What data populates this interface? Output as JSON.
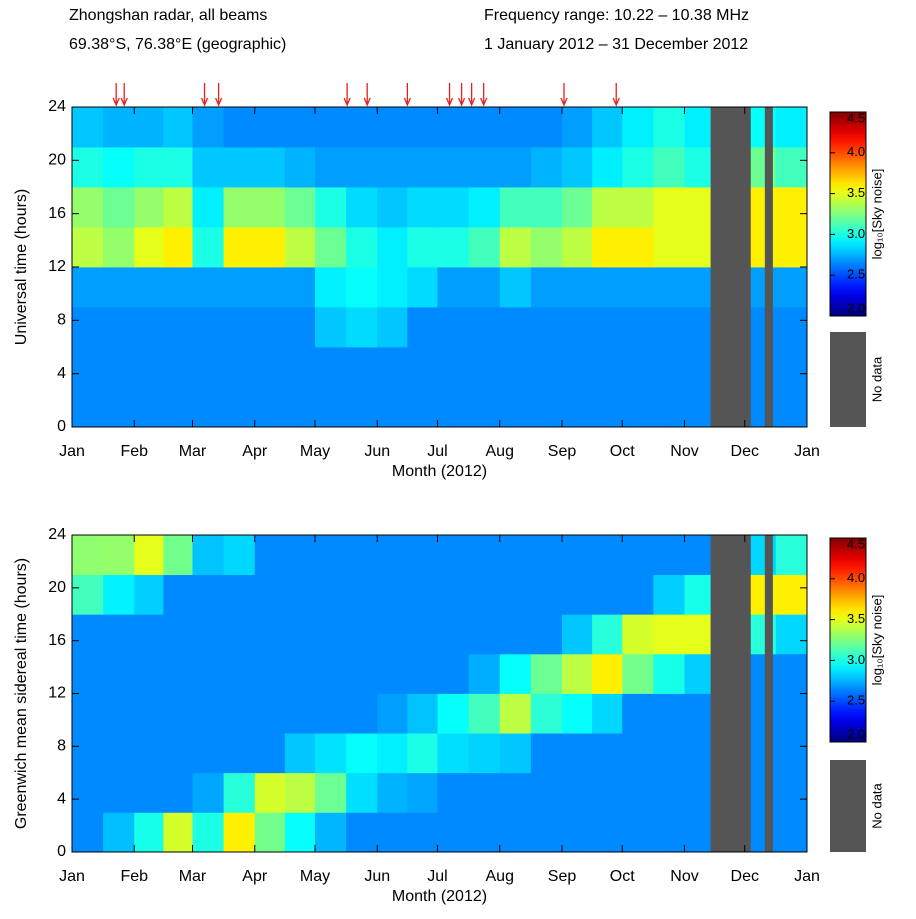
{
  "header": {
    "left": [
      "Zhongshan radar, all beams",
      "69.38°S, 76.38°E (geographic)"
    ],
    "right": [
      "Frequency range: 10.22 – 10.38 MHz",
      "1 January 2012 – 31 December 2012"
    ]
  },
  "chart_data": [
    {
      "type": "heatmap",
      "ylabel": "Universal time (hours)",
      "xlabel": "Month (2012)",
      "xlim": [
        0,
        366
      ],
      "xticks": [
        {
          "value": 0,
          "label": "Jan"
        },
        {
          "value": 31,
          "label": "Feb"
        },
        {
          "value": 60,
          "label": "Mar"
        },
        {
          "value": 91,
          "label": "Apr"
        },
        {
          "value": 121,
          "label": "May"
        },
        {
          "value": 152,
          "label": "Jun"
        },
        {
          "value": 182,
          "label": "Jul"
        },
        {
          "value": 213,
          "label": "Aug"
        },
        {
          "value": 244,
          "label": "Sep"
        },
        {
          "value": 274,
          "label": "Oct"
        },
        {
          "value": 305,
          "label": "Nov"
        },
        {
          "value": 335,
          "label": "Dec"
        },
        {
          "value": 366,
          "label": "Jan"
        }
      ],
      "ylim": [
        0,
        24
      ],
      "yticks": [
        0,
        4,
        8,
        12,
        16,
        20,
        24
      ],
      "xbins": [
        0,
        15.5,
        31,
        45.5,
        60,
        75.5,
        91,
        106,
        121,
        136.5,
        152,
        167,
        182,
        197.5,
        213,
        228.5,
        244,
        259,
        274,
        289.5,
        305,
        320,
        335,
        350.5,
        366
      ],
      "ybins": [
        0,
        3,
        6,
        9,
        12,
        15,
        18,
        21,
        24
      ],
      "z": [
        [
          2.65,
          2.65,
          2.65,
          2.65,
          2.65,
          2.65,
          2.65,
          2.65,
          2.65,
          2.65,
          2.65,
          2.65,
          2.65,
          2.65,
          2.65,
          2.65,
          2.65,
          2.65,
          2.65,
          2.65,
          2.65,
          2.65,
          2.65,
          2.65
        ],
        [
          2.65,
          2.65,
          2.65,
          2.65,
          2.65,
          2.65,
          2.65,
          2.65,
          2.65,
          2.65,
          2.65,
          2.65,
          2.65,
          2.65,
          2.65,
          2.65,
          2.65,
          2.65,
          2.65,
          2.65,
          2.65,
          2.65,
          2.65,
          2.65
        ],
        [
          2.65,
          2.65,
          2.65,
          2.65,
          2.65,
          2.65,
          2.65,
          2.65,
          2.8,
          2.85,
          2.8,
          2.65,
          2.65,
          2.65,
          2.65,
          2.65,
          2.65,
          2.65,
          2.65,
          2.65,
          2.65,
          2.65,
          2.65,
          2.65
        ],
        [
          2.7,
          2.7,
          2.7,
          2.7,
          2.7,
          2.7,
          2.7,
          2.7,
          2.9,
          2.95,
          2.9,
          2.85,
          2.7,
          2.7,
          2.8,
          2.7,
          2.7,
          2.7,
          2.7,
          2.7,
          2.7,
          2.7,
          2.7,
          2.7
        ],
        [
          3.4,
          3.3,
          3.5,
          3.6,
          3.0,
          3.6,
          3.6,
          3.4,
          3.2,
          3.0,
          2.9,
          3.0,
          3.0,
          3.1,
          3.4,
          3.3,
          3.4,
          3.6,
          3.6,
          3.5,
          3.5,
          3.4,
          3.6,
          3.6
        ],
        [
          3.3,
          3.2,
          3.3,
          3.4,
          2.9,
          3.3,
          3.3,
          3.2,
          3.0,
          2.85,
          2.8,
          2.85,
          2.85,
          2.9,
          3.1,
          3.1,
          3.2,
          3.4,
          3.4,
          3.5,
          3.5,
          3.4,
          3.6,
          3.6
        ],
        [
          3.0,
          2.95,
          3.0,
          3.0,
          2.8,
          2.8,
          2.8,
          2.75,
          2.7,
          2.7,
          2.7,
          2.7,
          2.7,
          2.7,
          2.7,
          2.75,
          2.8,
          2.9,
          3.0,
          3.1,
          3.0,
          3.0,
          3.2,
          3.1
        ],
        [
          2.8,
          2.75,
          2.75,
          2.8,
          2.7,
          2.65,
          2.65,
          2.65,
          2.65,
          2.65,
          2.65,
          2.65,
          2.65,
          2.65,
          2.65,
          2.65,
          2.7,
          2.8,
          2.9,
          3.0,
          2.9,
          2.9,
          2.95,
          2.9
        ]
      ],
      "zlim": [
        2,
        4.5
      ],
      "zticks": [
        {
          "value": 2,
          "label": "2.0"
        },
        {
          "value": 2.5,
          "label": "2.5"
        },
        {
          "value": 3,
          "label": "3.0"
        },
        {
          "value": 3.5,
          "label": "3.5"
        },
        {
          "value": 4,
          "label": "4.0"
        },
        {
          "value": 4.5,
          "label": "4.5"
        }
      ],
      "colorbar_label": "log₁₀[Sky noise]",
      "colormap": "jet",
      "no_data_label": "No data",
      "no_data_color": "#555555",
      "no_data_ranges": [
        [
          318,
          338
        ],
        [
          345,
          349
        ]
      ],
      "arrows_x": [
        22,
        26,
        66,
        73,
        137,
        147,
        167,
        188,
        194,
        199,
        205,
        245,
        271
      ],
      "arrow_color": "#e8201c"
    },
    {
      "type": "heatmap",
      "ylabel": "Greenwich mean sidereal time (hours)",
      "xlabel": "Month (2012)",
      "xlim": [
        0,
        366
      ],
      "xticks": [
        {
          "value": 0,
          "label": "Jan"
        },
        {
          "value": 31,
          "label": "Feb"
        },
        {
          "value": 60,
          "label": "Mar"
        },
        {
          "value": 91,
          "label": "Apr"
        },
        {
          "value": 121,
          "label": "May"
        },
        {
          "value": 152,
          "label": "Jun"
        },
        {
          "value": 182,
          "label": "Jul"
        },
        {
          "value": 213,
          "label": "Aug"
        },
        {
          "value": 244,
          "label": "Sep"
        },
        {
          "value": 274,
          "label": "Oct"
        },
        {
          "value": 305,
          "label": "Nov"
        },
        {
          "value": 335,
          "label": "Dec"
        },
        {
          "value": 366,
          "label": "Jan"
        }
      ],
      "ylim": [
        0,
        24
      ],
      "yticks": [
        0,
        4,
        8,
        12,
        16,
        20,
        24
      ],
      "xbins": [
        0,
        15.5,
        31,
        45.5,
        60,
        75.5,
        91,
        106,
        121,
        136.5,
        152,
        167,
        182,
        197.5,
        213,
        228.5,
        244,
        259,
        274,
        289.5,
        305,
        320,
        335,
        350.5,
        366
      ],
      "ybins": [
        0,
        3,
        6,
        9,
        12,
        15,
        18,
        21,
        24
      ],
      "z": [
        [
          2.65,
          2.78,
          2.99,
          3.46,
          3.0,
          3.6,
          3.22,
          2.95,
          2.76,
          2.65,
          2.65,
          2.65,
          2.65,
          2.65,
          2.65,
          2.65,
          2.65,
          2.65,
          2.65,
          2.65,
          2.65,
          2.65,
          2.65,
          2.65
        ],
        [
          2.65,
          2.65,
          2.65,
          2.65,
          2.72,
          3.03,
          3.46,
          3.4,
          3.2,
          2.86,
          2.75,
          2.72,
          2.65,
          2.65,
          2.65,
          2.65,
          2.65,
          2.65,
          2.65,
          2.65,
          2.65,
          2.65,
          2.65,
          2.65
        ],
        [
          2.65,
          2.65,
          2.65,
          2.65,
          2.65,
          2.65,
          2.65,
          2.8,
          2.87,
          2.95,
          2.9,
          3.0,
          2.86,
          2.83,
          2.8,
          2.65,
          2.65,
          2.65,
          2.65,
          2.65,
          2.65,
          2.65,
          2.65,
          2.65
        ],
        [
          2.65,
          2.65,
          2.65,
          2.65,
          2.65,
          2.65,
          2.65,
          2.65,
          2.65,
          2.65,
          2.7,
          2.79,
          2.95,
          3.1,
          3.4,
          3.04,
          2.95,
          2.84,
          2.65,
          2.65,
          2.65,
          2.65,
          2.65,
          2.65
        ],
        [
          2.65,
          2.65,
          2.65,
          2.65,
          2.65,
          2.65,
          2.65,
          2.65,
          2.65,
          2.65,
          2.65,
          2.65,
          2.65,
          2.74,
          2.95,
          3.2,
          3.4,
          3.6,
          3.22,
          2.99,
          2.82,
          2.65,
          2.65,
          2.65
        ],
        [
          2.65,
          2.65,
          2.65,
          2.65,
          2.65,
          2.65,
          2.65,
          2.65,
          2.65,
          2.65,
          2.65,
          2.65,
          2.65,
          2.65,
          2.65,
          2.65,
          2.8,
          3.03,
          3.46,
          3.5,
          3.5,
          3.1,
          3.03,
          2.84
        ],
        [
          3.1,
          2.91,
          2.82,
          2.65,
          2.65,
          2.65,
          2.65,
          2.65,
          2.65,
          2.65,
          2.65,
          2.65,
          2.65,
          2.65,
          2.65,
          2.65,
          2.65,
          2.65,
          2.65,
          2.82,
          2.99,
          3.29,
          3.6,
          3.6
        ],
        [
          3.29,
          3.3,
          3.5,
          3.22,
          2.79,
          2.84,
          2.65,
          2.65,
          2.65,
          2.65,
          2.65,
          2.65,
          2.65,
          2.65,
          2.65,
          2.65,
          2.65,
          2.65,
          2.65,
          2.65,
          2.65,
          2.65,
          2.84,
          3.03
        ]
      ],
      "zlim": [
        2,
        4.5
      ],
      "zticks": [
        {
          "value": 2,
          "label": "2.0"
        },
        {
          "value": 2.5,
          "label": "2.5"
        },
        {
          "value": 3,
          "label": "3.0"
        },
        {
          "value": 3.5,
          "label": "3.5"
        },
        {
          "value": 4,
          "label": "4.0"
        },
        {
          "value": 4.5,
          "label": "4.5"
        }
      ],
      "colorbar_label": "log₁₀[Sky noise]",
      "colormap": "jet",
      "no_data_label": "No data",
      "no_data_color": "#555555",
      "no_data_ranges": [
        [
          318,
          338
        ],
        [
          345,
          349
        ]
      ]
    }
  ]
}
